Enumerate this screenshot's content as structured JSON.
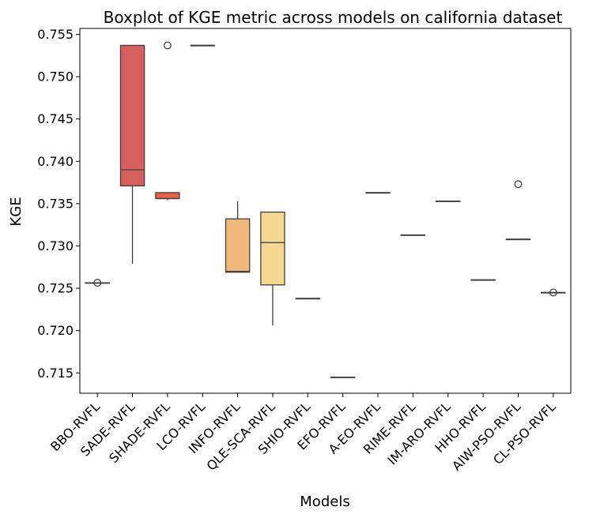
{
  "chart_data": {
    "type": "box",
    "title": "Boxplot of KGE metric across models on california dataset",
    "xlabel": "Models",
    "ylabel": "KGE",
    "ylim": [
      0.7126,
      0.7557
    ],
    "yticks": [
      0.715,
      0.72,
      0.725,
      0.73,
      0.735,
      0.74,
      0.745,
      0.75,
      0.755
    ],
    "ytick_labels": [
      "0.715",
      "0.720",
      "0.725",
      "0.730",
      "0.735",
      "0.740",
      "0.745",
      "0.750",
      "0.755"
    ],
    "grid": false,
    "legend": "none",
    "categories": [
      "BBO-RVFL",
      "SADE-RVFL",
      "SHADE-RVFL",
      "LCO-RVFL",
      "INFO-RVFL",
      "QLE-SCA-RVFL",
      "SHIO-RVFL",
      "EFO-RVFL",
      "A-EO-RVFL",
      "RIME-RVFL",
      "IM-ARO-RVFL",
      "HHO-RVFL",
      "AIW-PSO-RVFL",
      "CL-PSO-RVFL"
    ],
    "boxes": [
      {
        "whislo": 0.72565,
        "q1": 0.72565,
        "med": 0.72565,
        "q3": 0.72565,
        "whishi": 0.72565,
        "fliers": [
          0.72565
        ],
        "color": "#cb4f4f"
      },
      {
        "whislo": 0.7279,
        "q1": 0.7371,
        "med": 0.739,
        "q3": 0.7537,
        "whishi": 0.7537,
        "fliers": [],
        "color": "#d65f5f"
      },
      {
        "whislo": 0.7354,
        "q1": 0.7356,
        "med": 0.7356,
        "q3": 0.7363,
        "whishi": 0.7363,
        "fliers": [
          0.7537
        ],
        "color": "#e8624a"
      },
      {
        "whislo": 0.7537,
        "q1": 0.7537,
        "med": 0.7537,
        "q3": 0.7537,
        "whishi": 0.7537,
        "fliers": [],
        "color": "#ef7b52"
      },
      {
        "whislo": 0.7269,
        "q1": 0.7269,
        "med": 0.727,
        "q3": 0.7332,
        "whishi": 0.7353,
        "fliers": [],
        "color": "#f0b97b"
      },
      {
        "whislo": 0.7206,
        "q1": 0.7254,
        "med": 0.7304,
        "q3": 0.734,
        "whishi": 0.734,
        "fliers": [],
        "color": "#f5d993"
      },
      {
        "whislo": 0.7238,
        "q1": 0.7238,
        "med": 0.7238,
        "q3": 0.7238,
        "whishi": 0.7238,
        "fliers": [],
        "color": "#f7e6a6"
      },
      {
        "whislo": 0.7145,
        "q1": 0.7145,
        "med": 0.7145,
        "q3": 0.7145,
        "whishi": 0.7145,
        "fliers": [],
        "color": "#f4eba9"
      },
      {
        "whislo": 0.7363,
        "q1": 0.7363,
        "med": 0.7363,
        "q3": 0.7363,
        "whishi": 0.7363,
        "fliers": [],
        "color": "#e3ebb0"
      },
      {
        "whislo": 0.7313,
        "q1": 0.7313,
        "med": 0.7313,
        "q3": 0.7313,
        "whishi": 0.7313,
        "fliers": [],
        "color": "#c8e2b2"
      },
      {
        "whislo": 0.7353,
        "q1": 0.7353,
        "med": 0.7353,
        "q3": 0.7353,
        "whishi": 0.7353,
        "fliers": [],
        "color": "#9fd3b3"
      },
      {
        "whislo": 0.726,
        "q1": 0.726,
        "med": 0.726,
        "q3": 0.726,
        "whishi": 0.726,
        "fliers": [],
        "color": "#73c0b5"
      },
      {
        "whislo": 0.7308,
        "q1": 0.7308,
        "med": 0.7308,
        "q3": 0.7308,
        "whishi": 0.7308,
        "fliers": [
          0.7373
        ],
        "color": "#5aa8bd"
      },
      {
        "whislo": 0.7245,
        "q1": 0.7245,
        "med": 0.7245,
        "q3": 0.7245,
        "whishi": 0.7245,
        "fliers": [
          0.7245
        ],
        "color": "#5f8fc2"
      }
    ]
  }
}
